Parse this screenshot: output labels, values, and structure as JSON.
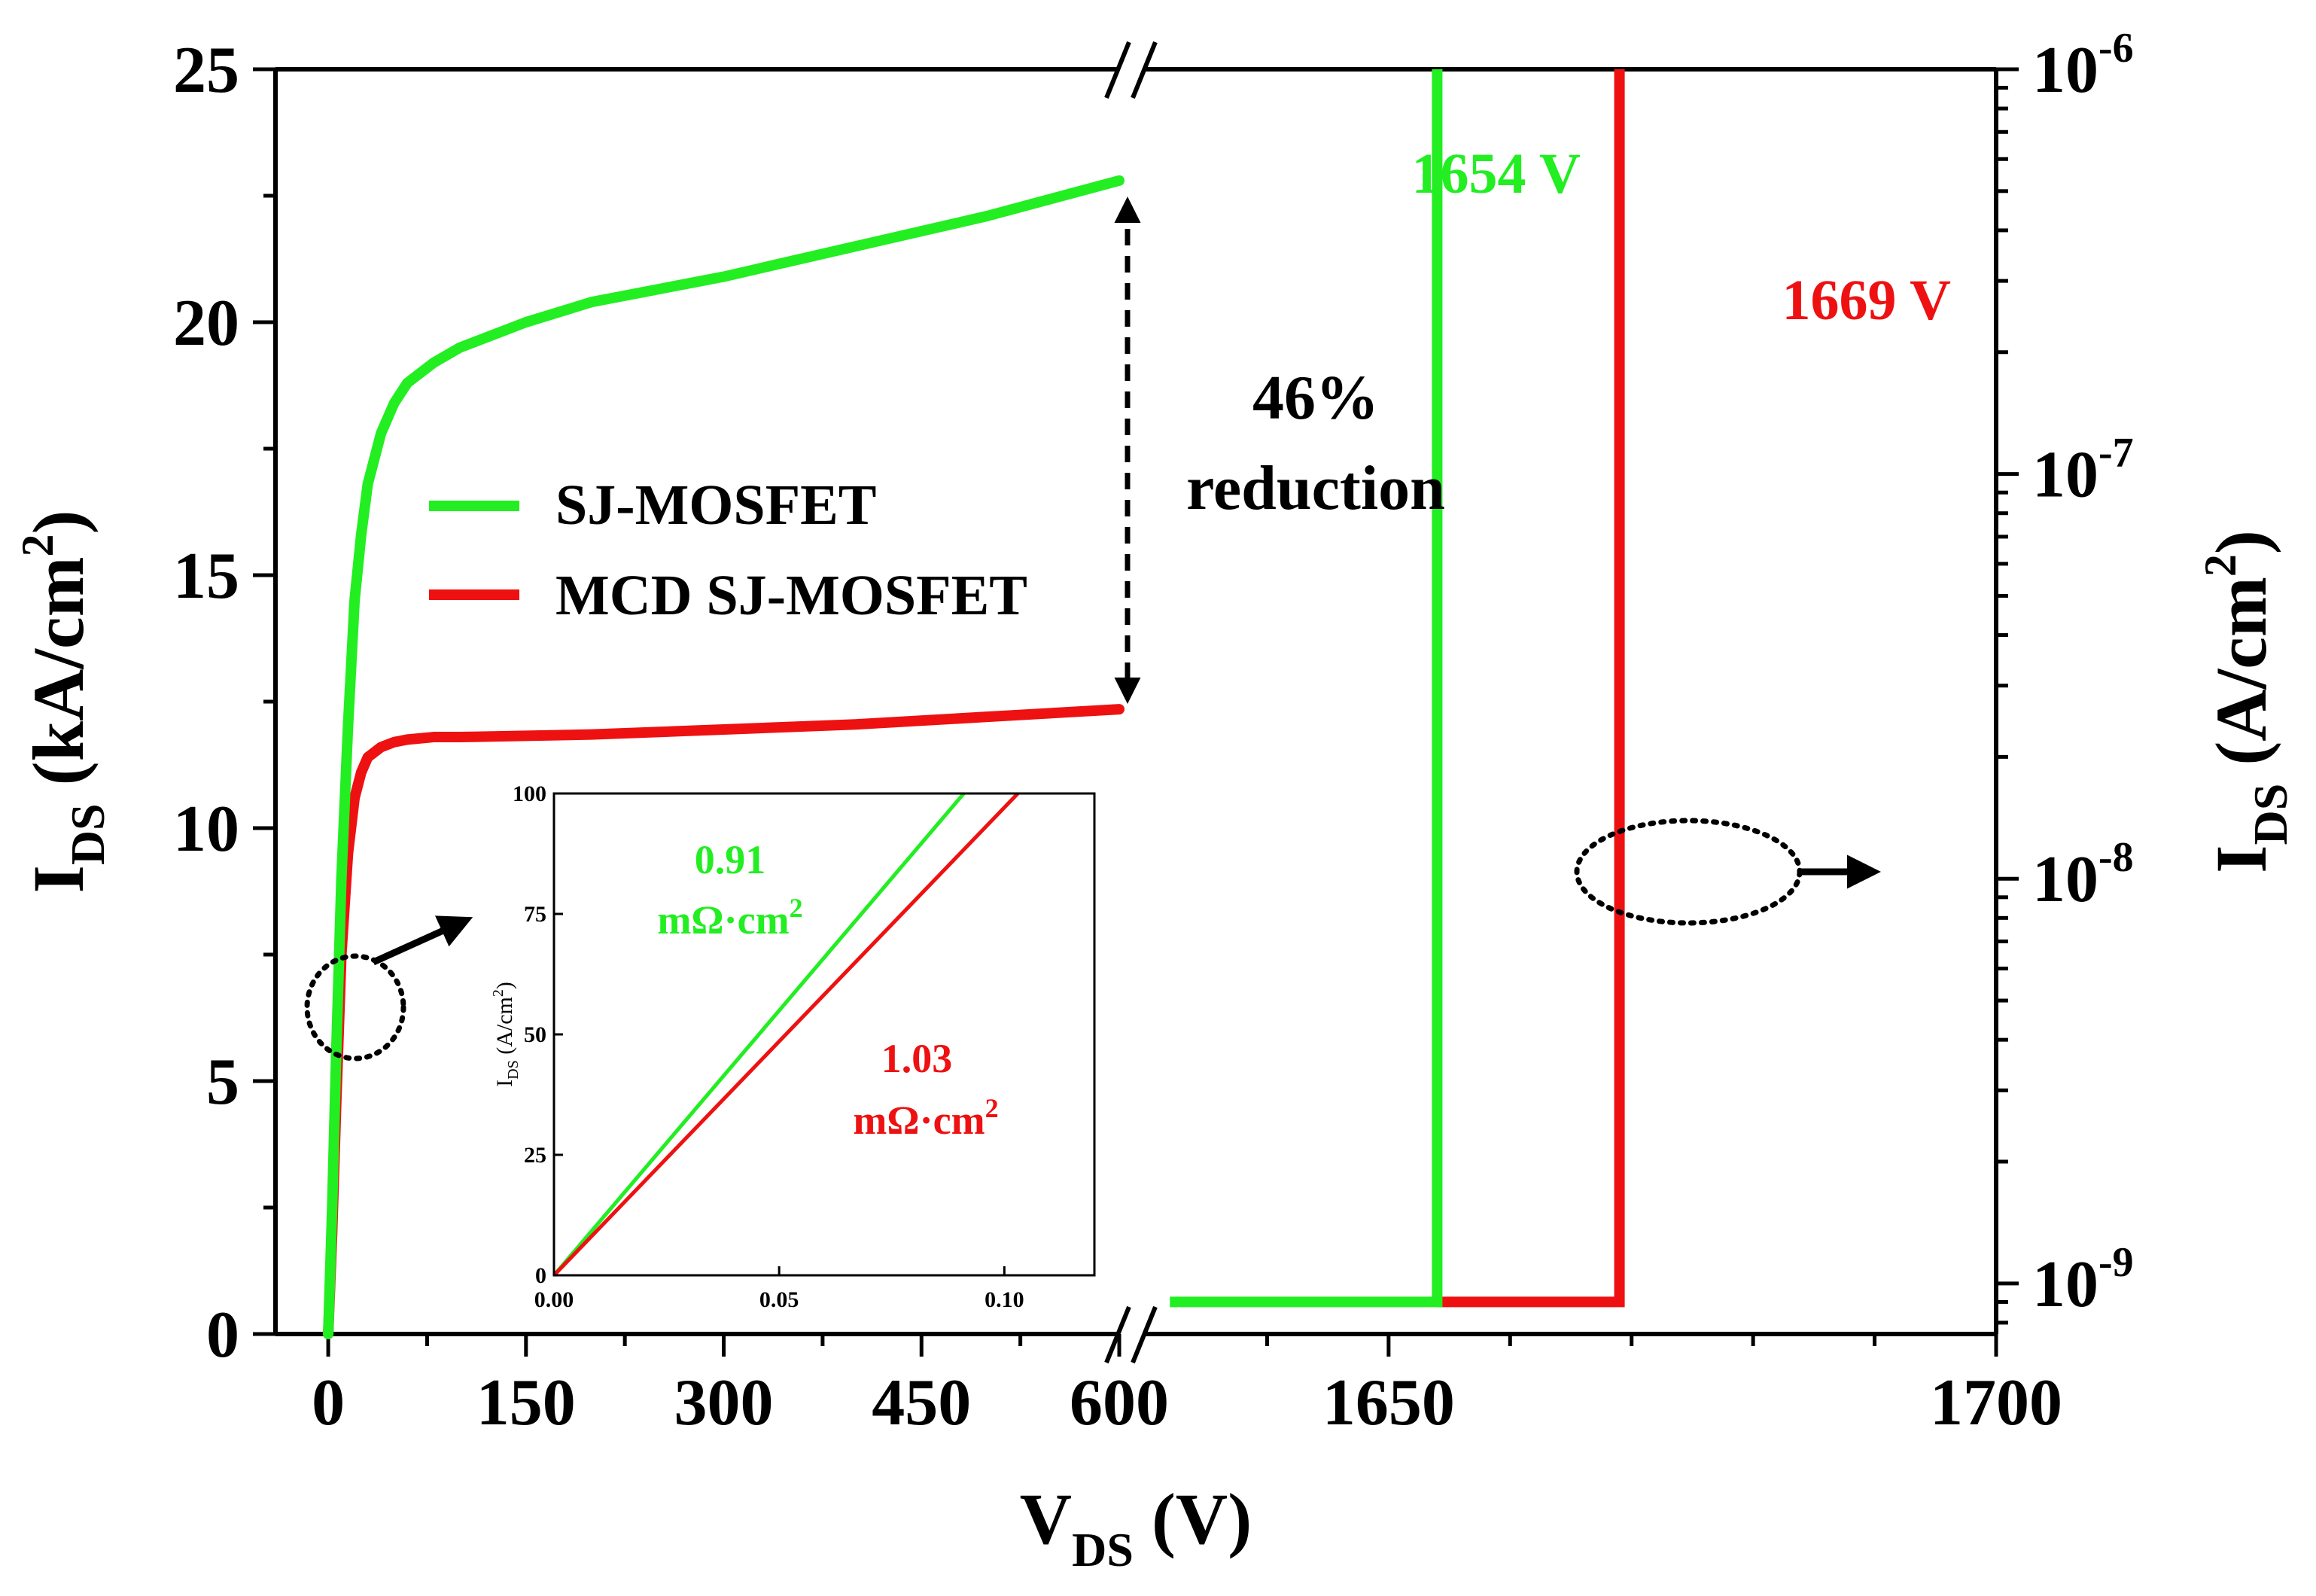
{
  "chart_data": {
    "type": "line",
    "title": "",
    "x_axis": {
      "label_main": "V",
      "label_sub": "DS",
      "label_unit": " (V)",
      "broken": true,
      "left_segment": {
        "range": [
          -40,
          600
        ],
        "tick_labels": [
          "0",
          "150",
          "300",
          "450",
          "600"
        ],
        "ticks": [
          0,
          150,
          300,
          450,
          600
        ]
      },
      "right_segment": {
        "range": [
          1630,
          1700
        ],
        "tick_labels": [
          "1650",
          "1700"
        ],
        "ticks": [
          1650,
          1700
        ]
      }
    },
    "y_left": {
      "label_main": "I",
      "label_sub": "DS",
      "label_unit": " (kA/cm",
      "label_sup": "2",
      "label_close": ")",
      "range": [
        0,
        25
      ],
      "tick_labels": [
        "0",
        "5",
        "10",
        "15",
        "20",
        "25"
      ],
      "ticks": [
        0,
        5,
        10,
        15,
        20,
        25
      ]
    },
    "y_right": {
      "label_main": "I",
      "label_sub": "DS",
      "label_unit": " (A/cm",
      "label_sup": "2",
      "label_close": ")",
      "scale": "log",
      "range": [
        7.5e-10,
        1e-06
      ],
      "tick_labels": [
        {
          "base": "10",
          "exp": "-6"
        },
        {
          "base": "10",
          "exp": "-7"
        },
        {
          "base": "10",
          "exp": "-8"
        },
        {
          "base": "10",
          "exp": "-9"
        }
      ],
      "ticks": [
        1e-06,
        1e-07,
        1e-08,
        1e-09
      ]
    },
    "legend": {
      "placement": "center-left"
    },
    "series": [
      {
        "name": "SJ-MOSFET",
        "color": "#22ee22",
        "forward": {
          "x": [
            0,
            3,
            6,
            10,
            15,
            20,
            25,
            30,
            40,
            50,
            60,
            80,
            100,
            150,
            200,
            300,
            400,
            500,
            600
          ],
          "y": [
            0,
            2.5,
            5.5,
            9.0,
            12.0,
            14.5,
            15.8,
            16.8,
            17.8,
            18.4,
            18.8,
            19.2,
            19.5,
            20.0,
            20.4,
            20.9,
            21.5,
            22.1,
            22.8
          ]
        },
        "breakdown": {
          "x": [
            1632,
            1654,
            1654
          ],
          "y": [
            9e-10,
            9e-10,
            1e-06
          ]
        },
        "breakdown_label": "1654 V"
      },
      {
        "name": "MCD SJ-MOSFET",
        "color": "#ee1111",
        "forward": {
          "x": [
            0,
            3,
            6,
            10,
            15,
            20,
            25,
            30,
            40,
            50,
            60,
            80,
            100,
            200,
            300,
            400,
            500,
            600
          ],
          "y": [
            0,
            2.0,
            4.5,
            7.5,
            9.5,
            10.6,
            11.1,
            11.4,
            11.6,
            11.7,
            11.75,
            11.8,
            11.8,
            11.85,
            11.95,
            12.05,
            12.2,
            12.35
          ]
        },
        "breakdown": {
          "x": [
            1654,
            1669,
            1669
          ],
          "y": [
            9e-10,
            9e-10,
            1e-06
          ]
        },
        "breakdown_label": "1669 V"
      }
    ],
    "annotations": {
      "reduction_line1": "46%",
      "reduction_line2": "reduction"
    },
    "inset": {
      "x_range": [
        0,
        0.12
      ],
      "y_range": [
        0,
        100
      ],
      "x_tick_labels": [
        "0.00",
        "0.05",
        "0.10"
      ],
      "x_ticks": [
        0,
        0.05,
        0.1
      ],
      "y_tick_labels": [
        "0",
        "25",
        "50",
        "75",
        "100"
      ],
      "y_ticks": [
        0,
        25,
        50,
        75,
        100
      ],
      "y_label_main": "I",
      "y_label_sub": "DS",
      "y_label_unit": " (A/cm",
      "y_label_sup": "2",
      "y_label_close": ")",
      "series": [
        {
          "name": "SJ-MOSFET",
          "color": "#22ee22",
          "x": [
            0,
            0.091
          ],
          "y": [
            0,
            100
          ],
          "label_value": "0.91",
          "label_unit": "mΩ·cm",
          "label_sup": "2"
        },
        {
          "name": "MCD SJ-MOSFET",
          "color": "#ee1111",
          "x": [
            0,
            0.103
          ],
          "y": [
            0,
            100
          ],
          "label_value": "1.03",
          "label_unit": "mΩ·cm",
          "label_sup": "2"
        }
      ]
    }
  }
}
